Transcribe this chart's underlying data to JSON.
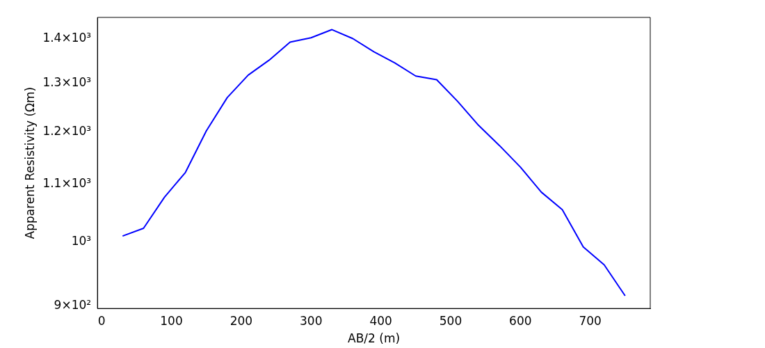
{
  "chart_data": {
    "type": "line",
    "xlabel": "AB/2 (m)",
    "ylabel": "Apparent Resistivity (Ωm)",
    "x": [
      30,
      60,
      90,
      120,
      150,
      180,
      210,
      240,
      270,
      300,
      330,
      360,
      390,
      420,
      450,
      480,
      510,
      540,
      570,
      600,
      630,
      660,
      690,
      720,
      750
    ],
    "series": [
      {
        "color": "#0000ff",
        "values": [
          1010,
          1023,
          1077,
          1122,
          1202,
          1270,
          1318,
          1351,
          1392,
          1402,
          1421,
          1400,
          1370,
          1345,
          1316,
          1308,
          1262,
          1213,
          1173,
          1132,
          1086,
          1055,
          992,
          963,
          915
        ]
      }
    ],
    "xlim": [
      -6,
      786
    ],
    "xticks": [
      0,
      100,
      200,
      300,
      400,
      500,
      600,
      700
    ],
    "ylim": [
      896,
      1450
    ],
    "yticks": [
      {
        "value": 900,
        "label": "9×10²"
      },
      {
        "value": 1000,
        "label": "10³"
      },
      {
        "value": 1100,
        "label": "1.1×10³"
      },
      {
        "value": 1200,
        "label": "1.2×10³"
      },
      {
        "value": 1300,
        "label": "1.3×10³"
      },
      {
        "value": 1400,
        "label": "1.4×10³"
      }
    ],
    "log": "y",
    "grid": false,
    "legend": false,
    "marker": "none",
    "line_style": "solid"
  }
}
